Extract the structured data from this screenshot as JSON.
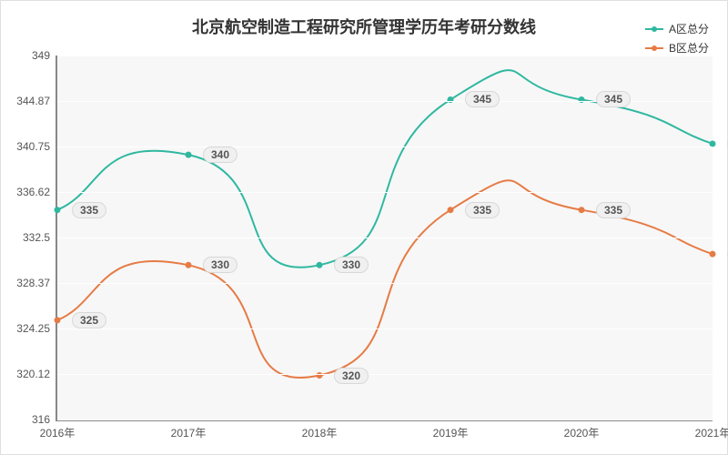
{
  "chart": {
    "type": "line",
    "title": "北京航空制造工程研究所管理学历年考研分数线",
    "title_fontsize": 18,
    "background_color": "#ffffff",
    "plot_background": "#f7f7f7",
    "grid_color": "#ffffff",
    "axis_color": "#888888",
    "label_color": "#555555",
    "x_categories": [
      "2016年",
      "2017年",
      "2018年",
      "2019年",
      "2020年",
      "2021年"
    ],
    "ylim": [
      316,
      349
    ],
    "y_ticks": [
      316,
      320.12,
      324.25,
      328.37,
      332.5,
      336.62,
      340.75,
      344.87,
      349
    ],
    "series": [
      {
        "name": "A区总分",
        "color": "#2fb8a0",
        "values": [
          335,
          340,
          330,
          345,
          345,
          341
        ],
        "line_width": 2,
        "marker": "circle"
      },
      {
        "name": "B区总分",
        "color": "#e67b45",
        "values": [
          325,
          330,
          320,
          335,
          335,
          331
        ],
        "line_width": 2,
        "marker": "circle"
      }
    ],
    "label_fontsize": 12,
    "data_label_bg": "#f0f0f0",
    "data_label_border": "#d8d8d8"
  }
}
